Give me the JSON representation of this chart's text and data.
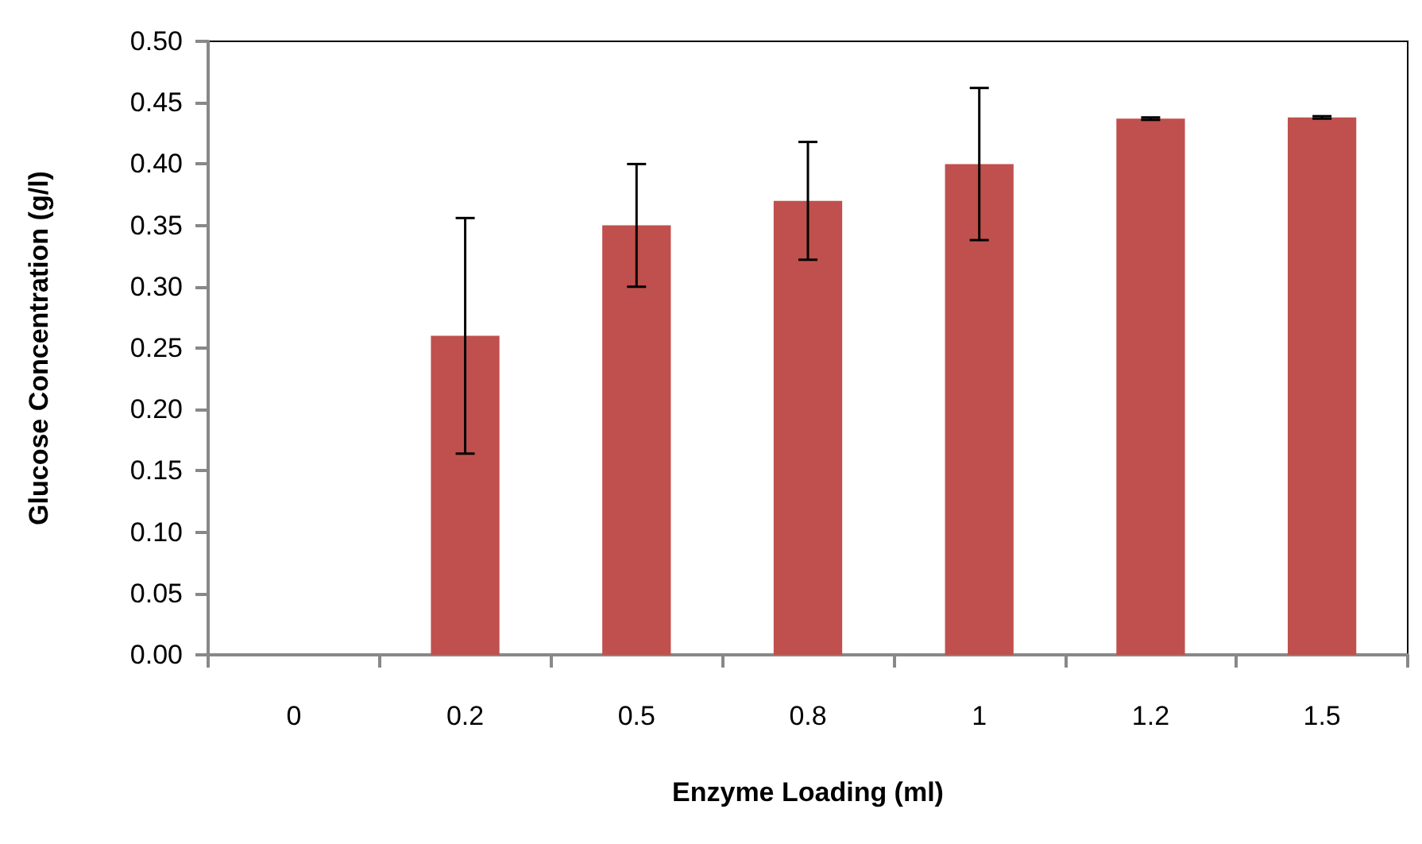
{
  "chart_data": {
    "type": "bar",
    "xlabel": "Enzyme Loading (ml)",
    "ylabel": "Glucose Concentration (g/l)",
    "categories": [
      "0",
      "0.2",
      "0.5",
      "0.8",
      "1",
      "1.2",
      "1.5"
    ],
    "values": [
      0,
      0.26,
      0.35,
      0.37,
      0.4,
      0.437,
      0.438
    ],
    "errors": [
      null,
      0.096,
      0.05,
      0.048,
      0.062,
      0.001,
      0.001
    ],
    "color": "#c0504d",
    "ylim": [
      0,
      0.5
    ],
    "yticks": [
      {
        "value": 0,
        "label": "0.00"
      },
      {
        "value": 0.05,
        "label": "0.05"
      },
      {
        "value": 0.1,
        "label": "0.10"
      },
      {
        "value": 0.15,
        "label": "0.15"
      },
      {
        "value": 0.2,
        "label": "0.20"
      },
      {
        "value": 0.25,
        "label": "0.25"
      },
      {
        "value": 0.3,
        "label": "0.30"
      },
      {
        "value": 0.35,
        "label": "0.35"
      },
      {
        "value": 0.4,
        "label": "0.40"
      },
      {
        "value": 0.45,
        "label": "0.45"
      },
      {
        "value": 0.5,
        "label": "0.50"
      }
    ],
    "grid": false
  }
}
